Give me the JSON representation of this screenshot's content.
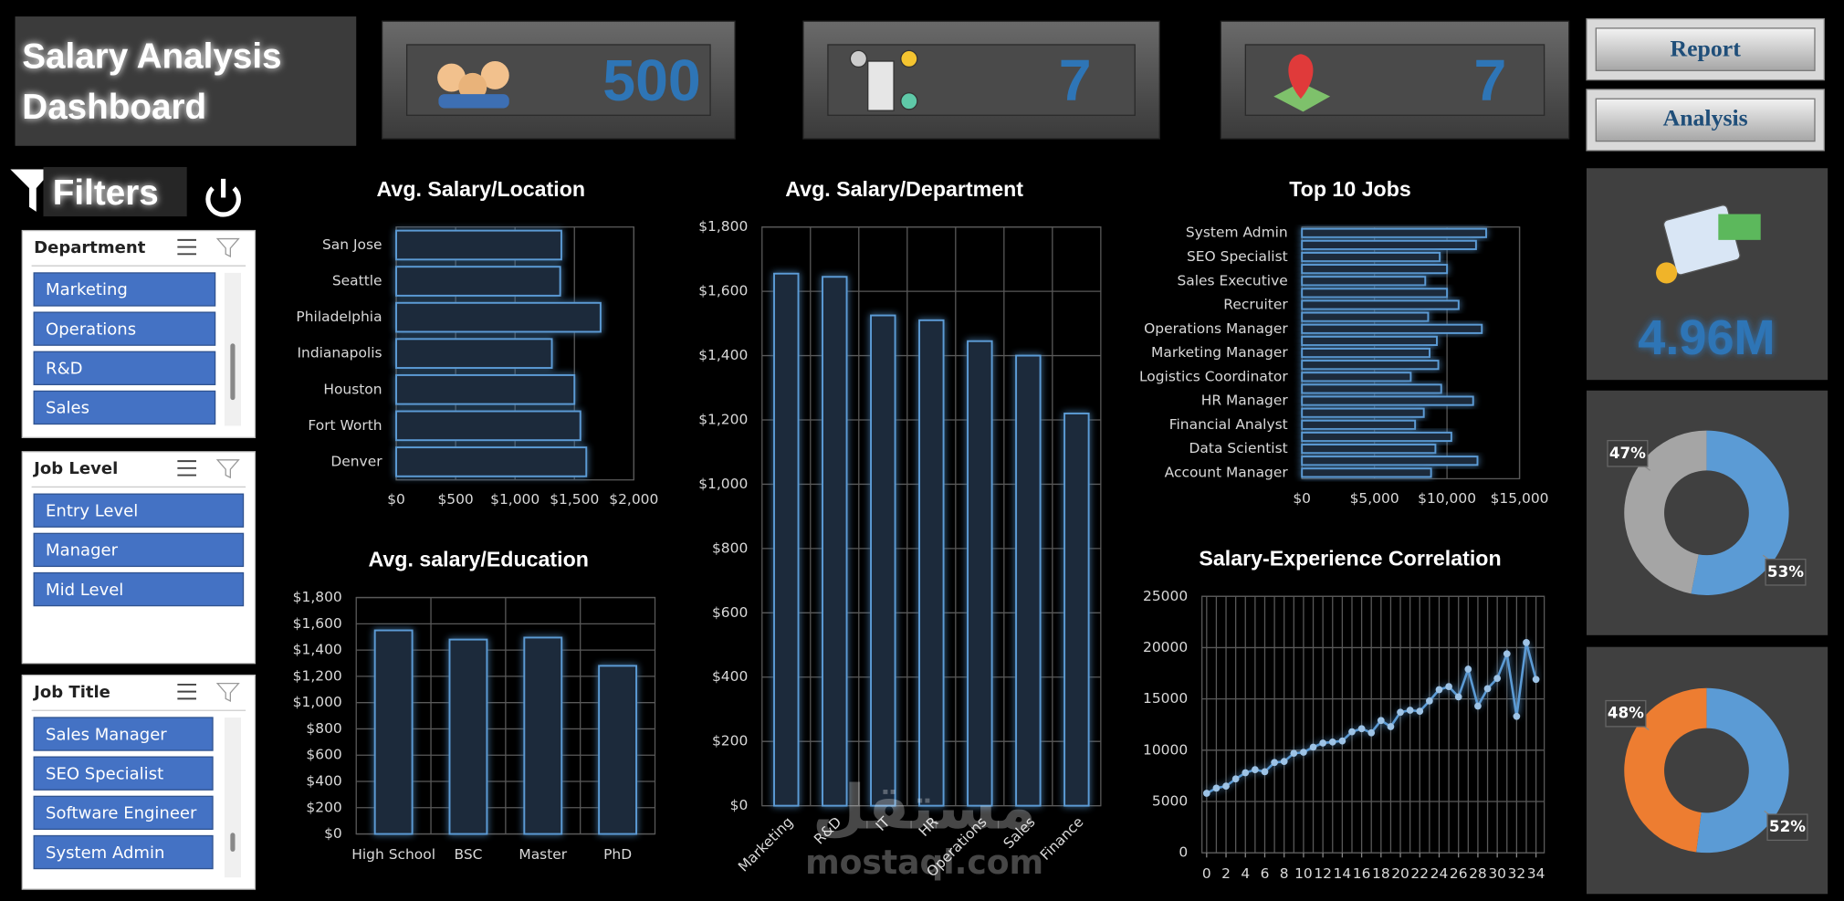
{
  "header": {
    "title_line1": "Salary Analysis",
    "title_line2": "Dashboard"
  },
  "kpis": [
    "500",
    "7",
    "7"
  ],
  "buttons": [
    "Report",
    "Analysis"
  ],
  "total_salary": "4.96M",
  "filters": {
    "title": "Filters",
    "slicers": [
      {
        "title": "Department",
        "items": [
          "Marketing",
          "Operations",
          "R&D",
          "Sales"
        ]
      },
      {
        "title": "Job Level",
        "items": [
          "Entry Level",
          "Manager",
          "Mid Level"
        ]
      },
      {
        "title": "Job Title",
        "items": [
          "Sales Manager",
          "SEO Specialist",
          "Software Engineer",
          "System Admin"
        ]
      }
    ]
  },
  "watermark": {
    "arabic": "مستقل",
    "latin": "mostaql.com"
  },
  "chart_data": [
    {
      "type": "hbar",
      "title": "Avg. Salary/Location",
      "color": "#5b9bd5",
      "grid": true,
      "categories": [
        "San Jose",
        "Seattle",
        "Philadelphia",
        "Indianapolis",
        "Houston",
        "Fort Worth",
        "Denver"
      ],
      "values": [
        1390,
        1380,
        1720,
        1310,
        1500,
        1550,
        1600
      ],
      "xlim": [
        0,
        2000
      ],
      "xticks": [
        {
          "value": 0,
          "label": "$0"
        },
        {
          "value": 500,
          "label": "$500"
        },
        {
          "value": 1000,
          "label": "$1,000"
        },
        {
          "value": 1500,
          "label": "$1,500"
        },
        {
          "value": 2000,
          "label": "$2,000"
        }
      ]
    },
    {
      "type": "bar",
      "title": "Avg. Salary/Department",
      "color": "#5b9bd5",
      "grid": true,
      "categories": [
        "Marketing",
        "R&D",
        "IT",
        "HR",
        "Operations",
        "Sales",
        "Finance"
      ],
      "values": [
        1655,
        1645,
        1525,
        1510,
        1445,
        1400,
        1220
      ],
      "ylim": [
        0,
        1800
      ],
      "yticks": [
        {
          "value": 0,
          "label": "$0"
        },
        {
          "value": 200,
          "label": "$200"
        },
        {
          "value": 400,
          "label": "$400"
        },
        {
          "value": 600,
          "label": "$600"
        },
        {
          "value": 800,
          "label": "$800"
        },
        {
          "value": 1000,
          "label": "$1,000"
        },
        {
          "value": 1200,
          "label": "$1,200"
        },
        {
          "value": 1400,
          "label": "$1,400"
        },
        {
          "value": 1600,
          "label": "$1,600"
        },
        {
          "value": 1800,
          "label": "$1,800"
        }
      ]
    },
    {
      "type": "hbar",
      "title": "Top 10 Jobs",
      "color": "#5b9bd5",
      "grid": true,
      "categories": [
        "System Admin",
        null,
        "SEO Specialist",
        null,
        "Sales Executive",
        null,
        "Recruiter",
        null,
        "Operations Manager",
        null,
        "Marketing Manager",
        null,
        "Logistics Coordinator",
        null,
        "HR Manager",
        null,
        "Financial Analyst",
        null,
        "Data Scientist",
        null,
        "Account Manager"
      ],
      "values": [
        12700,
        12000,
        9500,
        10000,
        8500,
        10000,
        10800,
        8700,
        12400,
        9300,
        8800,
        9400,
        7500,
        9600,
        11800,
        8400,
        7800,
        10300,
        9200,
        12100,
        8900
      ],
      "xlim": [
        0,
        15000
      ],
      "xticks": [
        {
          "value": 0,
          "label": "$0"
        },
        {
          "value": 5000,
          "label": "$5,000"
        },
        {
          "value": 10000,
          "label": "$10,000"
        },
        {
          "value": 15000,
          "label": "$15,000"
        }
      ]
    },
    {
      "type": "bar",
      "title": "Avg. salary/Education",
      "color": "#5b9bd5",
      "grid": true,
      "categories": [
        "High School",
        "BSC",
        "Master",
        "PhD"
      ],
      "values": [
        1550,
        1480,
        1495,
        1280
      ],
      "ylim": [
        0,
        1800
      ],
      "yticks": [
        {
          "value": 0,
          "label": "$0"
        },
        {
          "value": 200,
          "label": "$200"
        },
        {
          "value": 400,
          "label": "$400"
        },
        {
          "value": 600,
          "label": "$600"
        },
        {
          "value": 800,
          "label": "$800"
        },
        {
          "value": 1000,
          "label": "$1,000"
        },
        {
          "value": 1200,
          "label": "$1,200"
        },
        {
          "value": 1400,
          "label": "$1,400"
        },
        {
          "value": 1600,
          "label": "$1,600"
        },
        {
          "value": 1800,
          "label": "$1,800"
        }
      ]
    },
    {
      "type": "line",
      "title": "Salary-Experience Correlation",
      "color": "#5b9bd5",
      "grid": true,
      "x": [
        0,
        1,
        2,
        3,
        4,
        5,
        6,
        7,
        8,
        9,
        10,
        11,
        12,
        13,
        14,
        15,
        16,
        17,
        18,
        19,
        20,
        21,
        22,
        23,
        24,
        25,
        26,
        27,
        28,
        29,
        30,
        31,
        32,
        33,
        34
      ],
      "values": [
        5800,
        6300,
        6500,
        7200,
        7800,
        8100,
        7900,
        8800,
        8900,
        9700,
        9800,
        10300,
        10700,
        10800,
        10900,
        11800,
        12100,
        11700,
        12900,
        12300,
        13700,
        13900,
        13800,
        14800,
        15900,
        16200,
        15200,
        17900,
        14300,
        16000,
        17000,
        19400,
        13300,
        20500,
        16900
      ],
      "xlim": [
        0,
        34
      ],
      "xticks": [
        0,
        2,
        4,
        6,
        8,
        10,
        12,
        14,
        16,
        18,
        20,
        22,
        24,
        26,
        28,
        30,
        32,
        34
      ],
      "ylim": [
        0,
        25000
      ],
      "yticks": [
        0,
        5000,
        10000,
        15000,
        20000,
        25000
      ]
    },
    {
      "type": "donut",
      "colors": [
        "#5b9bd5",
        "#a5a5a5"
      ],
      "values": [
        53,
        47
      ],
      "value_labels": [
        "53%",
        "47%"
      ]
    },
    {
      "type": "donut",
      "colors": [
        "#5b9bd5",
        "#ed7d31"
      ],
      "values": [
        52,
        48
      ],
      "value_labels": [
        "52%",
        "48%"
      ]
    }
  ]
}
